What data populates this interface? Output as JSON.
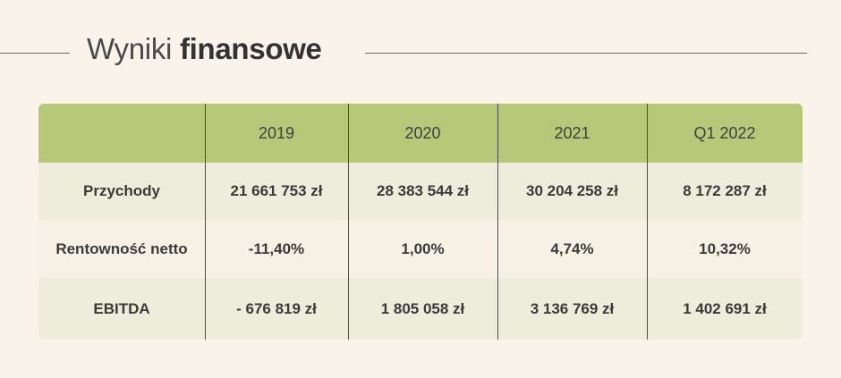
{
  "title": {
    "light": "Wyniki",
    "bold": "finansowe"
  },
  "table": {
    "columns": [
      "",
      "2019",
      "2020",
      "2021",
      "Q1 2022"
    ],
    "rows": [
      {
        "label": "Przychody",
        "values": [
          "21 661 753 zł",
          "28 383 544 zł",
          "30 204 258 zł",
          "8 172 287 zł"
        ]
      },
      {
        "label": "Rentowność netto",
        "values": [
          "-11,40%",
          "1,00%",
          "4,74%",
          "10,32%"
        ]
      },
      {
        "label": "EBITDA",
        "values": [
          "- 676 819 zł",
          "1 805 058 zł",
          "3 136 769 zł",
          "1 402 691 zł"
        ]
      }
    ]
  },
  "colors": {
    "header": "#b7c978",
    "row_light": "#eeeddb",
    "row_alt": "#f6f1e4",
    "background": "#faf3ea"
  }
}
